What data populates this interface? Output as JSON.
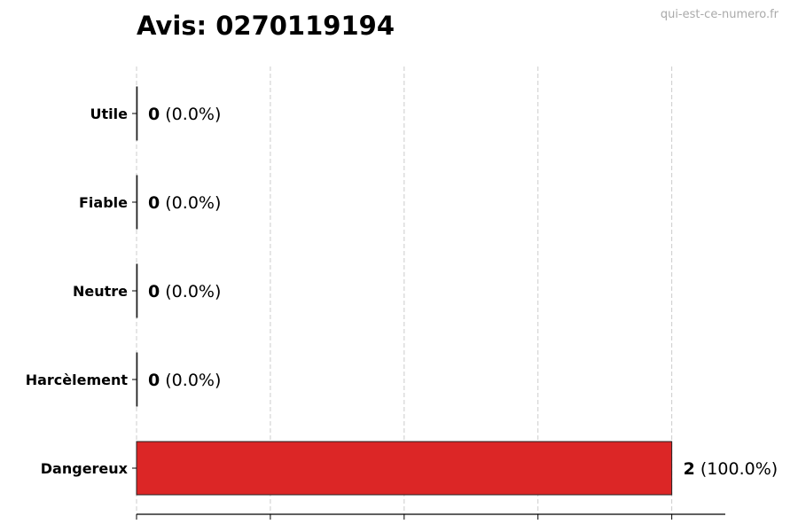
{
  "title": "Avis: 0270119194",
  "watermark": "qui-est-ce-numero.fr",
  "chart_data": {
    "type": "bar",
    "orientation": "horizontal",
    "title": "Avis: 0270119194",
    "categories": [
      "Utile",
      "Fiable",
      "Neutre",
      "Harcèlement",
      "Dangereux"
    ],
    "values": [
      0,
      0,
      0,
      0,
      2
    ],
    "labels": [
      {
        "count": "0",
        "pct": "(0.0%)"
      },
      {
        "count": "0",
        "pct": "(0.0%)"
      },
      {
        "count": "0",
        "pct": "(0.0%)"
      },
      {
        "count": "0",
        "pct": "(0.0%)"
      },
      {
        "count": "2",
        "pct": "(100.0%)"
      }
    ],
    "xlim": [
      0,
      2.2
    ],
    "xticks": [
      0,
      0.5,
      1,
      1.5,
      2
    ],
    "xtick_labels_shown": false,
    "grid": "x dashed",
    "colors": {
      "bar": "#dc2626",
      "edge": "#222222",
      "grid": "#cccccc"
    }
  }
}
